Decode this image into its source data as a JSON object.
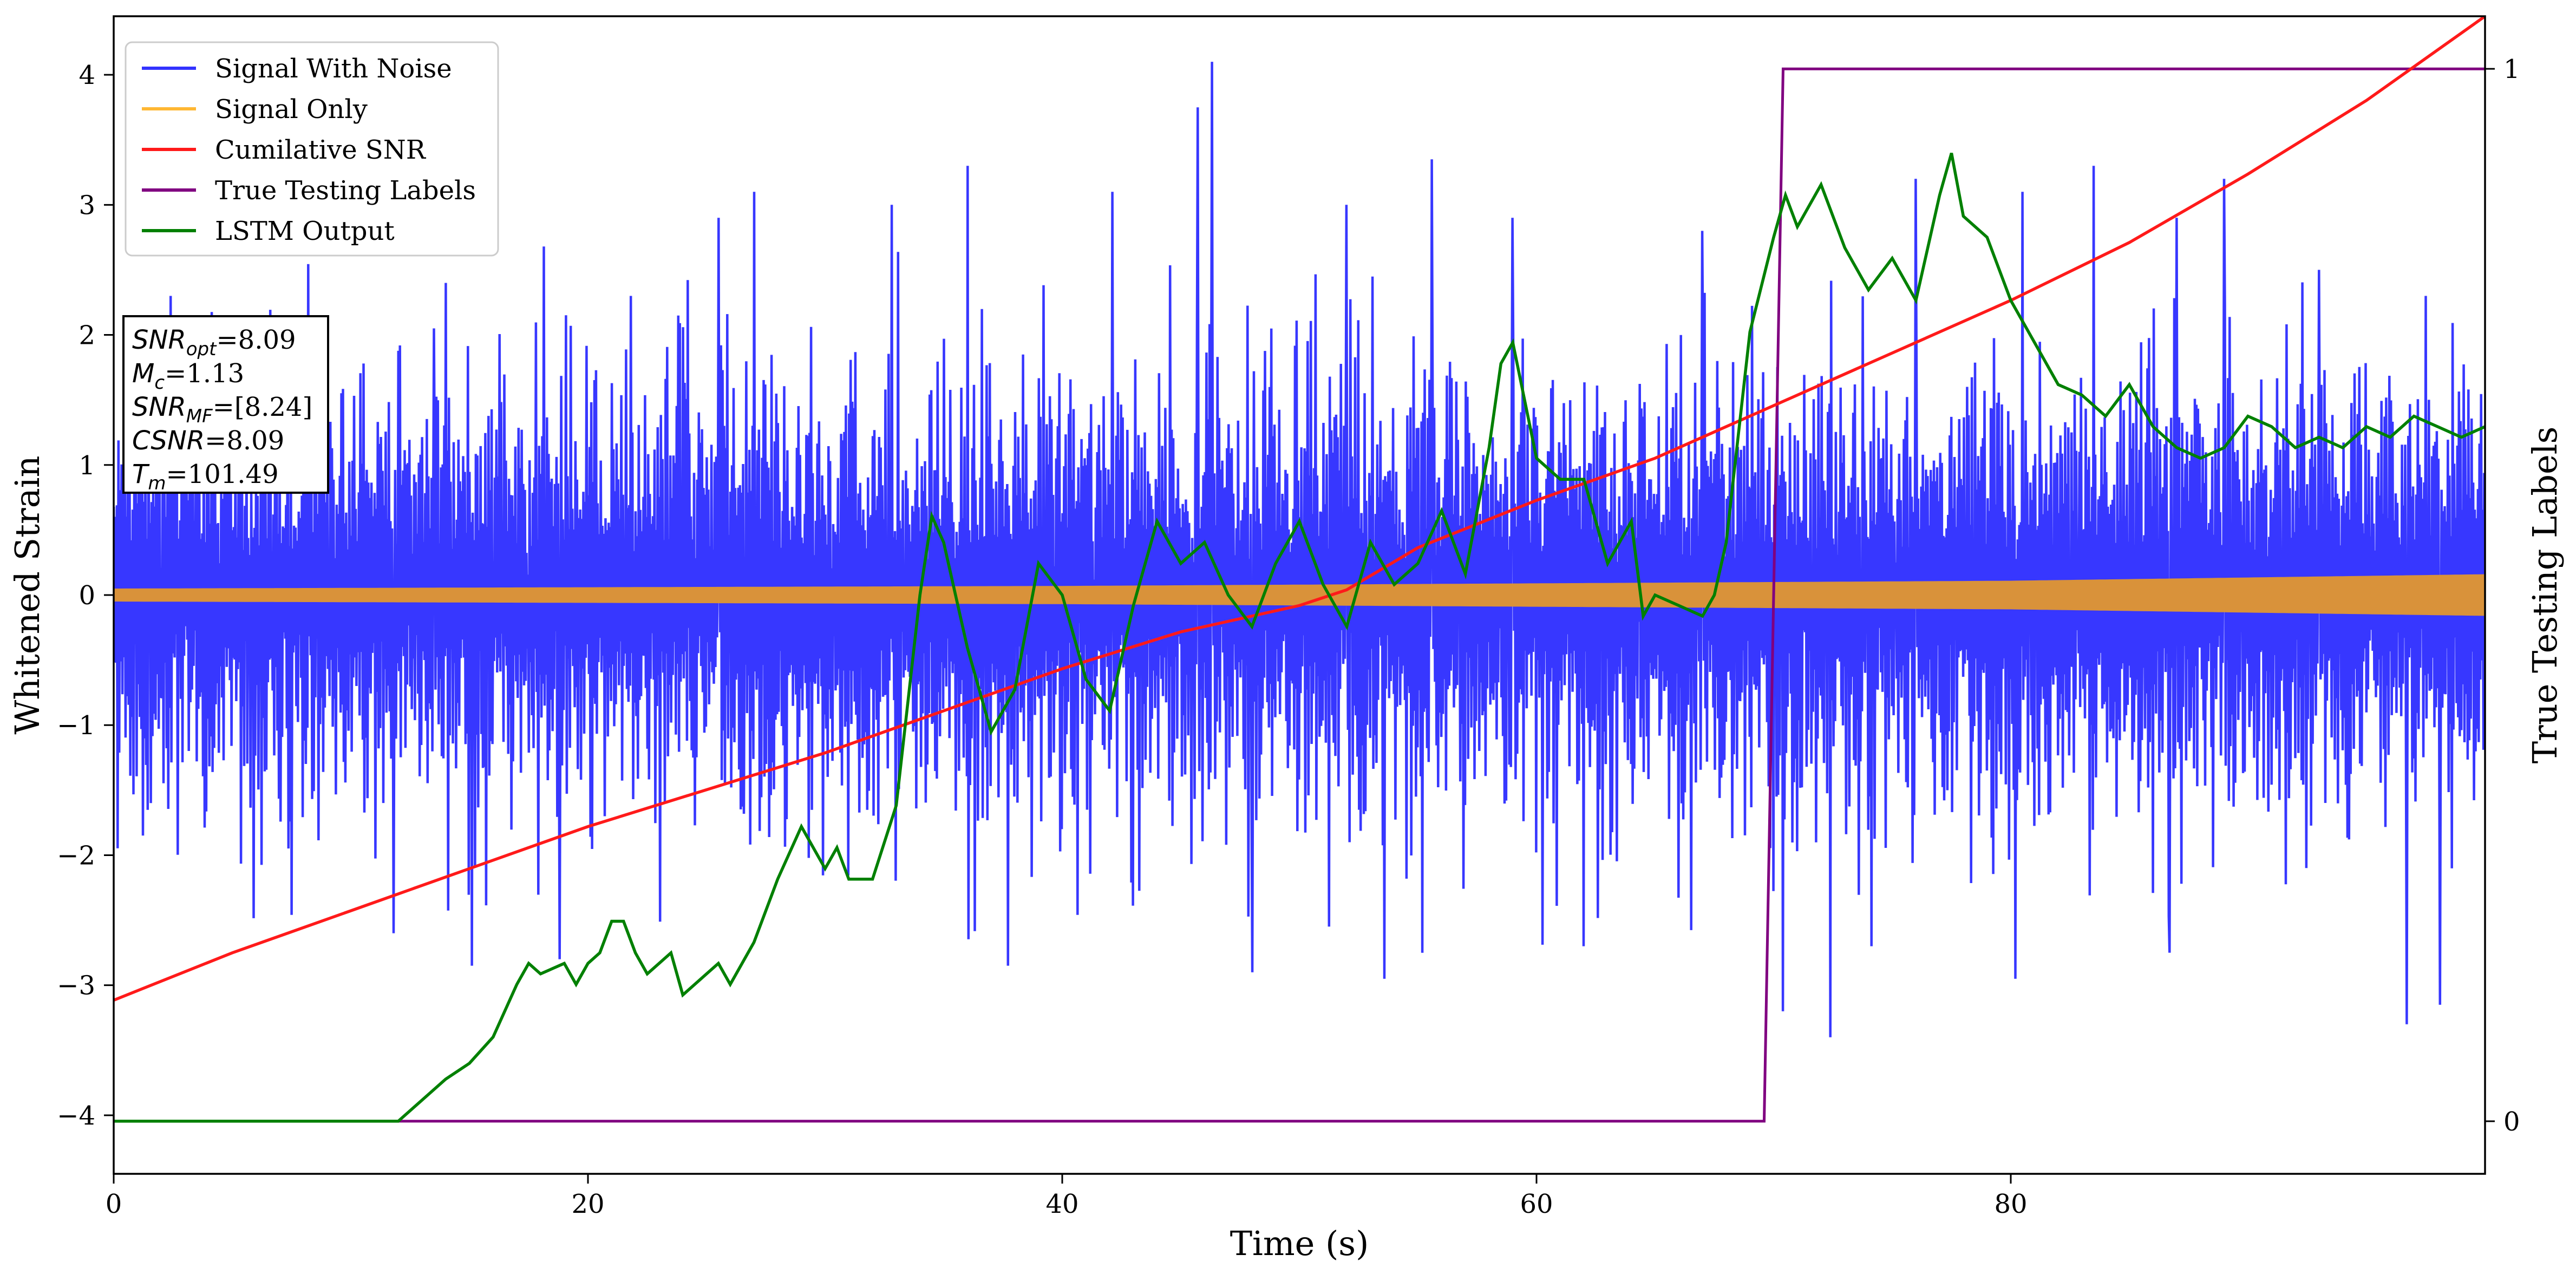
{
  "chart_data": {
    "type": "line",
    "xlabel": "Time (s)",
    "ylabel_left": "Whitened Strain",
    "ylabel_right": "True Testing Labels",
    "xlim": [
      0,
      100
    ],
    "ylim_left": [
      -4.45,
      4.45
    ],
    "ylim_right": [
      -0.05,
      1.05
    ],
    "x_ticks": [
      0,
      20,
      40,
      60,
      80
    ],
    "y_ticks_left": [
      -4,
      -3,
      -2,
      -1,
      0,
      1,
      2,
      3,
      4
    ],
    "y_ticks_right": [
      0,
      1
    ],
    "grid": false,
    "legend_position": "top-left",
    "colors": {
      "signal_with_noise": "#3333ff",
      "signal_only": "#ffb733",
      "signal_only_overlap": "#d9923a",
      "cumulative_snr": "#ff1a1a",
      "true_labels": "#800080",
      "lstm_output": "#008000"
    },
    "series": [
      {
        "name": "Signal With Noise",
        "style": "noise",
        "description_values": {
          "approx_range": [
            -3.4,
            4.1
          ],
          "typical_amplitude": 1.0
        },
        "highlight_peaks": [
          {
            "x": 0.6,
            "y": 1.7
          },
          {
            "x": 2.4,
            "y": 2.3
          },
          {
            "x": 13.5,
            "y": 2.05
          },
          {
            "x": 14.0,
            "y": 2.4
          },
          {
            "x": 21.8,
            "y": 2.3
          },
          {
            "x": 25.5,
            "y": 2.9
          },
          {
            "x": 27.0,
            "y": 3.1
          },
          {
            "x": 32.8,
            "y": 3.0
          },
          {
            "x": 36.0,
            "y": 3.3
          },
          {
            "x": 42.1,
            "y": 3.1
          },
          {
            "x": 45.7,
            "y": 3.75
          },
          {
            "x": 46.3,
            "y": 4.1
          },
          {
            "x": 52.0,
            "y": 3.0
          },
          {
            "x": 55.6,
            "y": 3.35
          },
          {
            "x": 59.0,
            "y": 2.9
          },
          {
            "x": 62.0,
            "y": 3.3
          },
          {
            "x": 67.0,
            "y": 2.8
          },
          {
            "x": 76.0,
            "y": 3.2
          },
          {
            "x": 80.5,
            "y": 3.1
          },
          {
            "x": 83.5,
            "y": 3.3
          },
          {
            "x": 87.0,
            "y": 2.9
          },
          {
            "x": 89.0,
            "y": 3.2
          },
          {
            "x": 93.0,
            "y": 2.5
          },
          {
            "x": 97.5,
            "y": 2.3
          }
        ],
        "low_peaks": [
          {
            "x": 11.8,
            "y": -2.6
          },
          {
            "x": 15.1,
            "y": -2.85
          },
          {
            "x": 18.8,
            "y": -2.8
          },
          {
            "x": 37.7,
            "y": -2.85
          },
          {
            "x": 48.0,
            "y": -2.9
          },
          {
            "x": 53.6,
            "y": -2.95
          },
          {
            "x": 62.0,
            "y": -2.7
          },
          {
            "x": 70.4,
            "y": -3.2
          },
          {
            "x": 72.4,
            "y": -3.4
          },
          {
            "x": 80.2,
            "y": -2.95
          },
          {
            "x": 86.7,
            "y": -2.75
          },
          {
            "x": 96.7,
            "y": -3.3
          },
          {
            "x": 98.1,
            "y": -3.15
          }
        ]
      },
      {
        "name": "Signal Only",
        "style": "band",
        "amplitude_x": [
          0,
          20,
          40,
          60,
          80,
          100
        ],
        "amplitude": [
          0.05,
          0.06,
          0.07,
          0.09,
          0.11,
          0.16
        ]
      },
      {
        "name": "Cumilative SNR",
        "axis": "right",
        "x": [
          0,
          5,
          10,
          15,
          20,
          25,
          30,
          35,
          40,
          45,
          50,
          52,
          55,
          60,
          65,
          70,
          75,
          80,
          85,
          90,
          95,
          100
        ],
        "y": [
          0.115,
          0.16,
          0.2,
          0.24,
          0.28,
          0.315,
          0.35,
          0.39,
          0.43,
          0.465,
          0.49,
          0.505,
          0.545,
          0.59,
          0.63,
          0.68,
          0.73,
          0.78,
          0.835,
          0.9,
          0.97,
          1.05
        ]
      },
      {
        "name": "True Testing Labels",
        "axis": "right",
        "x": [
          0,
          69.6,
          70.4,
          100
        ],
        "y": [
          0,
          0,
          1,
          1
        ]
      },
      {
        "name": "LSTM Output",
        "axis": "right",
        "x": [
          0,
          10,
          12,
          13,
          14,
          15,
          16,
          17,
          17.5,
          18,
          19,
          19.5,
          20,
          20.5,
          21,
          21.5,
          22,
          22.5,
          23,
          23.5,
          24,
          25,
          25.5,
          26,
          27,
          28,
          29,
          29.5,
          30,
          30.5,
          31,
          32,
          33,
          34,
          34.5,
          35,
          36,
          37,
          38,
          39,
          40,
          41,
          42,
          43,
          44,
          45,
          46,
          47,
          48,
          49,
          50,
          51,
          52,
          53,
          54,
          55,
          56,
          57,
          58,
          58.5,
          59,
          60,
          61,
          62,
          63,
          64,
          64.5,
          65,
          66,
          67,
          67.5,
          68,
          69,
          70,
          70.5,
          71,
          72,
          73,
          74,
          75,
          76,
          77,
          77.5,
          78,
          79,
          80,
          81,
          82,
          83,
          84,
          85,
          86,
          87,
          88,
          89,
          90,
          91,
          92,
          93,
          94,
          95,
          96,
          97,
          98,
          99,
          100
        ],
        "y": [
          0,
          0,
          0,
          0.02,
          0.04,
          0.055,
          0.08,
          0.13,
          0.15,
          0.14,
          0.15,
          0.13,
          0.15,
          0.16,
          0.19,
          0.19,
          0.16,
          0.14,
          0.15,
          0.16,
          0.12,
          0.14,
          0.15,
          0.13,
          0.17,
          0.23,
          0.28,
          0.26,
          0.24,
          0.26,
          0.23,
          0.23,
          0.3,
          0.5,
          0.575,
          0.55,
          0.45,
          0.37,
          0.41,
          0.53,
          0.5,
          0.42,
          0.39,
          0.49,
          0.57,
          0.53,
          0.55,
          0.5,
          0.47,
          0.53,
          0.57,
          0.51,
          0.47,
          0.55,
          0.51,
          0.53,
          0.58,
          0.52,
          0.64,
          0.72,
          0.74,
          0.63,
          0.61,
          0.61,
          0.53,
          0.57,
          0.48,
          0.5,
          0.49,
          0.48,
          0.5,
          0.55,
          0.75,
          0.84,
          0.88,
          0.85,
          0.89,
          0.83,
          0.79,
          0.82,
          0.78,
          0.88,
          0.92,
          0.86,
          0.84,
          0.78,
          0.74,
          0.7,
          0.69,
          0.67,
          0.7,
          0.66,
          0.64,
          0.63,
          0.64,
          0.67,
          0.66,
          0.64,
          0.65,
          0.64,
          0.66,
          0.65,
          0.67,
          0.66,
          0.65,
          0.66
        ]
      }
    ],
    "legend": [
      "Signal With Noise",
      "Signal Only",
      "Cumilative SNR",
      "True Testing Labels",
      "LSTM Output"
    ],
    "annotation_lines": [
      {
        "label": "SNR",
        "sub": "opt",
        "value": "=8.09"
      },
      {
        "label": "M",
        "sub": "c",
        "value": "=1.13"
      },
      {
        "label": "SNR",
        "sub": "MF",
        "value": "=[8.24]"
      },
      {
        "label": "CSNR",
        "sub": "",
        "value": "=8.09"
      },
      {
        "label": "T",
        "sub": "m",
        "value": "=101.49"
      }
    ]
  }
}
